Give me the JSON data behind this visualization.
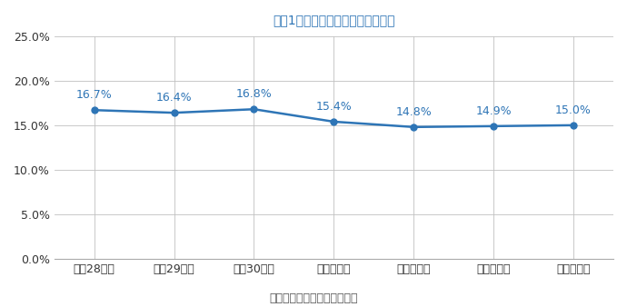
{
  "title": "》図1》歯科健康診査受診率の推移",
  "title_display": "【図1】歯科健康診査受診率の推移",
  "source_label": "【資料】刈谷市歯科健康診査",
  "categories": [
    "平成28年度",
    "平成29年度",
    "平成30年度",
    "令和元年度",
    "令和２年度",
    "令和３年度",
    "令和４年度"
  ],
  "values": [
    0.167,
    0.164,
    0.168,
    0.154,
    0.148,
    0.149,
    0.15
  ],
  "labels": [
    "16.7%",
    "16.4%",
    "16.8%",
    "15.4%",
    "14.8%",
    "14.9%",
    "15.0%"
  ],
  "line_color": "#2E75B6",
  "marker_color": "#2E75B6",
  "title_color": "#2E75B6",
  "background_color": "#FFFFFF",
  "ylim": [
    0.0,
    0.25
  ],
  "yticks": [
    0.0,
    0.05,
    0.1,
    0.15,
    0.2,
    0.25
  ],
  "ytick_labels": [
    "0.0%",
    "5.0%",
    "10.0%",
    "15.0%",
    "20.0%",
    "25.0%"
  ],
  "grid_color": "#C0C0C0",
  "label_fontsize": 9,
  "title_fontsize": 16,
  "tick_fontsize": 9,
  "source_fontsize": 9
}
